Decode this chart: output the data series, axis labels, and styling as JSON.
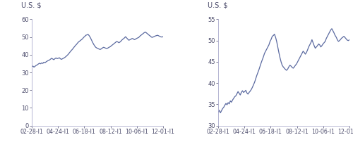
{
  "title_label": "U.S. $",
  "x_labels": [
    "02-28-I1",
    "04-24-I1",
    "06-18-I1",
    "08-12-I1",
    "10-06-I1",
    "12-01-I1"
  ],
  "left_yticks": [
    0,
    10,
    20,
    30,
    40,
    50,
    60
  ],
  "right_yticks": [
    30,
    35,
    40,
    45,
    50,
    55
  ],
  "left_ylim": [
    0,
    60
  ],
  "right_ylim": [
    30,
    55
  ],
  "line_color": "#5b6aa0",
  "line_width": 0.9,
  "background_color": "#ffffff",
  "title_fontsize": 7.0,
  "tick_fontsize": 6.0,
  "y_values": [
    33.2,
    33.6,
    33.0,
    33.5,
    34.0,
    34.3,
    34.8,
    35.2,
    34.9,
    35.4,
    35.1,
    35.8,
    35.5,
    36.0,
    36.4,
    36.8,
    37.0,
    37.5,
    38.0,
    37.6,
    37.2,
    37.8,
    38.2,
    37.8,
    38.0,
    38.3,
    37.7,
    37.4,
    37.8,
    38.1,
    38.5,
    39.0,
    39.6,
    40.2,
    41.0,
    41.8,
    42.5,
    43.2,
    44.0,
    44.8,
    45.5,
    46.2,
    47.0,
    47.5,
    48.0,
    48.5,
    49.0,
    49.8,
    50.3,
    51.0,
    51.2,
    51.5,
    50.8,
    49.8,
    48.5,
    47.2,
    46.0,
    45.0,
    44.2,
    43.8,
    43.5,
    43.2,
    43.0,
    43.3,
    43.8,
    44.2,
    44.0,
    43.7,
    43.5,
    43.8,
    44.2,
    44.5,
    45.0,
    45.5,
    46.0,
    46.5,
    47.0,
    47.5,
    47.2,
    46.8,
    47.2,
    47.8,
    48.5,
    49.0,
    49.5,
    50.2,
    49.5,
    48.8,
    48.2,
    48.5,
    48.8,
    49.2,
    49.0,
    48.5,
    48.8,
    49.2,
    49.5,
    49.8,
    50.5,
    51.0,
    51.5,
    52.0,
    52.5,
    52.8,
    52.3,
    51.8,
    51.2,
    50.8,
    50.2,
    49.8,
    50.0,
    50.3,
    50.6,
    50.8,
    51.0,
    50.7,
    50.4,
    50.1,
    50.0,
    50.2
  ]
}
